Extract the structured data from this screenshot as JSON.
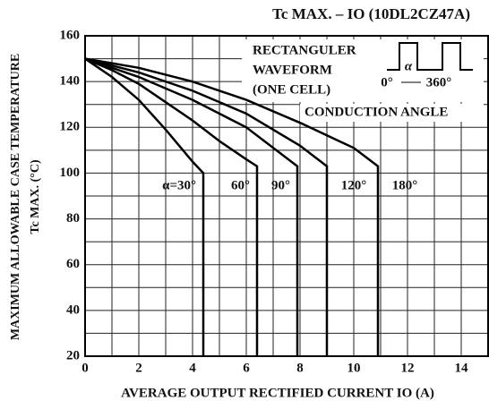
{
  "chart_data": {
    "type": "line",
    "title": "Tc MAX. – IO (10DL2CZ47A)",
    "x_label": "AVERAGE OUTPUT RECTIFIED CURRENT  IO  (A)",
    "y_label": [
      "MAXIMUM ALLOWABLE CASE TEMPERATURE",
      "Tc MAX. (°C)"
    ],
    "annotations": [
      "RECTANGULER",
      "WAVEFORM",
      "(ONE CELL)",
      "CONDUCTION ANGLE",
      "0°",
      "α",
      "360°"
    ],
    "xlim": [
      0,
      15
    ],
    "xticks": [
      0,
      2,
      4,
      6,
      8,
      10,
      12,
      14
    ],
    "ylim": [
      20,
      160
    ],
    "yticks": [
      20,
      40,
      60,
      80,
      100,
      120,
      140,
      160
    ],
    "grid": true,
    "minor_grid": true,
    "series": [
      {
        "name": "α=30°",
        "color": "#000000",
        "x": [
          0,
          1,
          2,
          3,
          4,
          4.4,
          4.4
        ],
        "values": [
          150,
          142,
          132,
          119,
          105,
          100,
          20
        ]
      },
      {
        "name": "60°",
        "color": "#000000",
        "x": [
          0,
          1,
          2,
          3,
          4,
          5,
          6,
          6.4,
          6.4
        ],
        "values": [
          150,
          145,
          139,
          131,
          123,
          114,
          106,
          103,
          20
        ]
      },
      {
        "name": "90°",
        "color": "#000000",
        "x": [
          0,
          2,
          4,
          6,
          7.9,
          7.9
        ],
        "values": [
          150,
          142,
          132,
          120,
          103,
          20
        ]
      },
      {
        "name": "120°",
        "color": "#000000",
        "x": [
          0,
          2,
          4,
          6,
          8,
          9,
          9
        ],
        "values": [
          150,
          144,
          136,
          126,
          112,
          103,
          20
        ]
      },
      {
        "name": "180°",
        "color": "#000000",
        "x": [
          0,
          2,
          4,
          6,
          8,
          10,
          10.9,
          10.9
        ],
        "values": [
          150,
          146,
          140,
          132,
          122,
          111,
          103,
          20
        ]
      }
    ]
  }
}
